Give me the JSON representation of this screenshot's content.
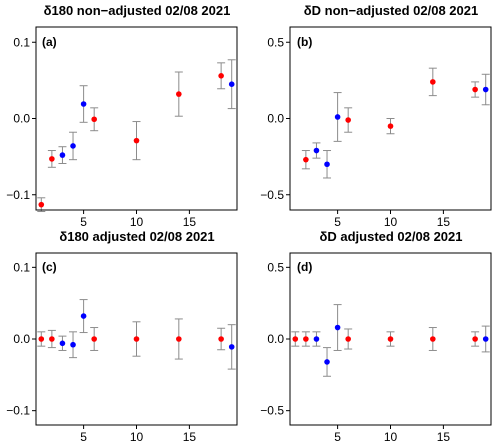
{
  "chart_data": [
    {
      "type": "scatter",
      "panel_label": "(a)",
      "title": "δ180 non−adjusted 02/08 2021",
      "xlim": [
        0.5,
        19.5
      ],
      "ylim": [
        -0.12,
        0.12
      ],
      "xticks": [
        5,
        10,
        15
      ],
      "xtick_labels": [
        "5",
        "10",
        "15"
      ],
      "yticks": [
        -0.1,
        0.0,
        0.1
      ],
      "ytick_labels": [
        "−0.1",
        "0.0",
        "0.1"
      ],
      "series": [
        {
          "color": "#ff0000",
          "points": [
            {
              "x": 1,
              "y": -0.113,
              "err": 0.009
            },
            {
              "x": 2,
              "y": -0.053,
              "err": 0.011
            },
            {
              "x": 6,
              "y": -0.001,
              "err": 0.015
            },
            {
              "x": 10,
              "y": -0.029,
              "err": 0.025
            },
            {
              "x": 14,
              "y": 0.032,
              "err": 0.029
            },
            {
              "x": 18,
              "y": 0.056,
              "err": 0.017
            }
          ]
        },
        {
          "color": "#0000ff",
          "points": [
            {
              "x": 3,
              "y": -0.048,
              "err": 0.011
            },
            {
              "x": 4,
              "y": -0.036,
              "err": 0.018
            },
            {
              "x": 5,
              "y": 0.019,
              "err": 0.024
            },
            {
              "x": 19,
              "y": 0.045,
              "err": 0.032
            }
          ]
        }
      ]
    },
    {
      "type": "scatter",
      "panel_label": "(b)",
      "title": "δD non−adjusted 02/08 2021",
      "xlim": [
        0.5,
        19.5
      ],
      "ylim": [
        -0.6,
        0.6
      ],
      "xticks": [
        5,
        10,
        15
      ],
      "xtick_labels": [
        "5",
        "10",
        "15"
      ],
      "yticks": [
        -0.5,
        0.0,
        0.5
      ],
      "ytick_labels": [
        "−0.5",
        "0.0",
        "0.5"
      ],
      "series": [
        {
          "color": "#ff0000",
          "points": [
            {
              "x": 2,
              "y": -0.27,
              "err": 0.06
            },
            {
              "x": 6,
              "y": -0.01,
              "err": 0.08
            },
            {
              "x": 10,
              "y": -0.05,
              "err": 0.05
            },
            {
              "x": 14,
              "y": 0.24,
              "err": 0.09
            },
            {
              "x": 18,
              "y": 0.19,
              "err": 0.05
            }
          ]
        },
        {
          "color": "#0000ff",
          "points": [
            {
              "x": 3,
              "y": -0.21,
              "err": 0.05
            },
            {
              "x": 4,
              "y": -0.3,
              "err": 0.09
            },
            {
              "x": 5,
              "y": 0.01,
              "err": 0.16
            },
            {
              "x": 19,
              "y": 0.19,
              "err": 0.1
            }
          ]
        }
      ]
    },
    {
      "type": "scatter",
      "panel_label": "(c)",
      "title": "δ180 adjusted 02/08 2021",
      "xlim": [
        0.5,
        19.5
      ],
      "ylim": [
        -0.12,
        0.12
      ],
      "xticks": [
        5,
        10,
        15
      ],
      "xtick_labels": [
        "5",
        "10",
        "15"
      ],
      "yticks": [
        -0.1,
        0.0,
        0.1
      ],
      "ytick_labels": [
        "−0.1",
        "0.0",
        "0.1"
      ],
      "series": [
        {
          "color": "#ff0000",
          "points": [
            {
              "x": 1,
              "y": 0.0,
              "err": 0.01
            },
            {
              "x": 2,
              "y": 0.0,
              "err": 0.012
            },
            {
              "x": 6,
              "y": 0.0,
              "err": 0.016
            },
            {
              "x": 10,
              "y": 0.0,
              "err": 0.024
            },
            {
              "x": 14,
              "y": 0.0,
              "err": 0.028
            },
            {
              "x": 18,
              "y": 0.0,
              "err": 0.015
            }
          ]
        },
        {
          "color": "#0000ff",
          "points": [
            {
              "x": 3,
              "y": -0.006,
              "err": 0.01
            },
            {
              "x": 4,
              "y": -0.008,
              "err": 0.018
            },
            {
              "x": 5,
              "y": 0.032,
              "err": 0.023
            },
            {
              "x": 19,
              "y": -0.011,
              "err": 0.031
            }
          ]
        }
      ]
    },
    {
      "type": "scatter",
      "panel_label": "(d)",
      "title": "δD adjusted 02/08 2021",
      "xlim": [
        0.5,
        19.5
      ],
      "ylim": [
        -0.6,
        0.6
      ],
      "xticks": [
        5,
        10,
        15
      ],
      "xtick_labels": [
        "5",
        "10",
        "15"
      ],
      "yticks": [
        -0.5,
        0.0,
        0.5
      ],
      "ytick_labels": [
        "−0.5",
        "0.0",
        "0.5"
      ],
      "series": [
        {
          "color": "#ff0000",
          "points": [
            {
              "x": 1,
              "y": 0.0,
              "err": 0.05
            },
            {
              "x": 2,
              "y": 0.0,
              "err": 0.05
            },
            {
              "x": 6,
              "y": 0.0,
              "err": 0.07
            },
            {
              "x": 10,
              "y": 0.0,
              "err": 0.05
            },
            {
              "x": 14,
              "y": 0.0,
              "err": 0.08
            },
            {
              "x": 18,
              "y": 0.0,
              "err": 0.05
            }
          ]
        },
        {
          "color": "#0000ff",
          "points": [
            {
              "x": 3,
              "y": 0.0,
              "err": 0.05
            },
            {
              "x": 4,
              "y": -0.16,
              "err": 0.1
            },
            {
              "x": 5,
              "y": 0.08,
              "err": 0.16
            },
            {
              "x": 19,
              "y": 0.0,
              "err": 0.09
            }
          ]
        }
      ]
    }
  ]
}
